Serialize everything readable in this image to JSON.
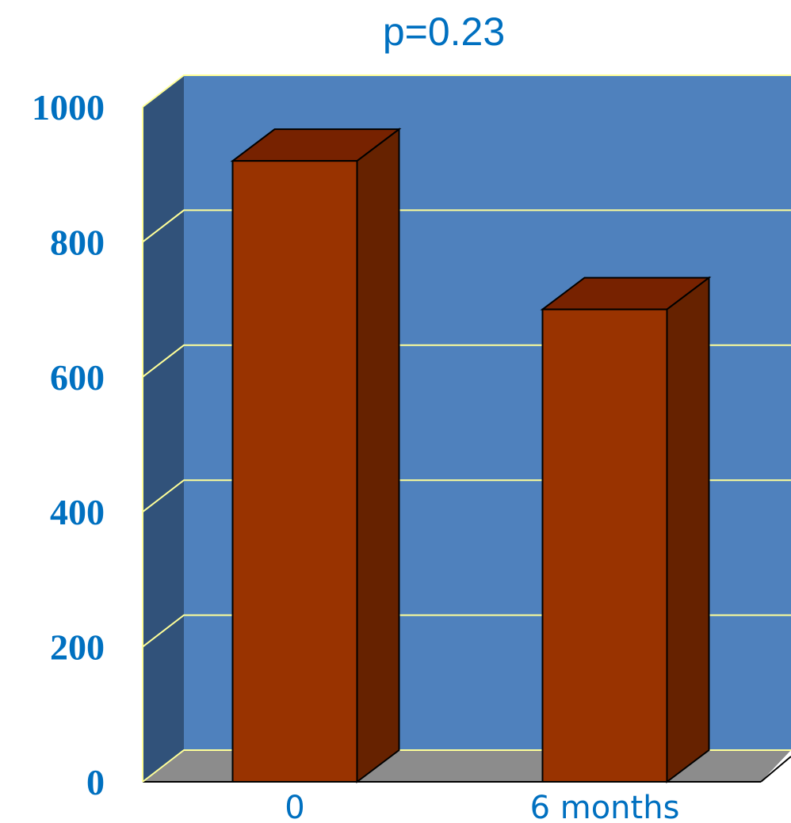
{
  "chart_data": {
    "type": "bar",
    "title": "p=0.23",
    "xlabel": "",
    "ylabel": "",
    "categories": [
      "0",
      "6 months"
    ],
    "values": [
      920,
      700
    ],
    "ylim": [
      0,
      1000
    ],
    "y_ticks": [
      "0",
      "200",
      "400",
      "600",
      "800",
      "1000"
    ],
    "grid": true,
    "three_d": true
  },
  "colors": {
    "text": "#0070c0",
    "wall_back": "#4f81bd",
    "wall_side": "#31527a",
    "floor": "#8c8c8c",
    "gridline": "#ffff99",
    "bar_front": "#993300",
    "bar_top": "#772200",
    "bar_side": "#662200",
    "outline": "#000000"
  }
}
